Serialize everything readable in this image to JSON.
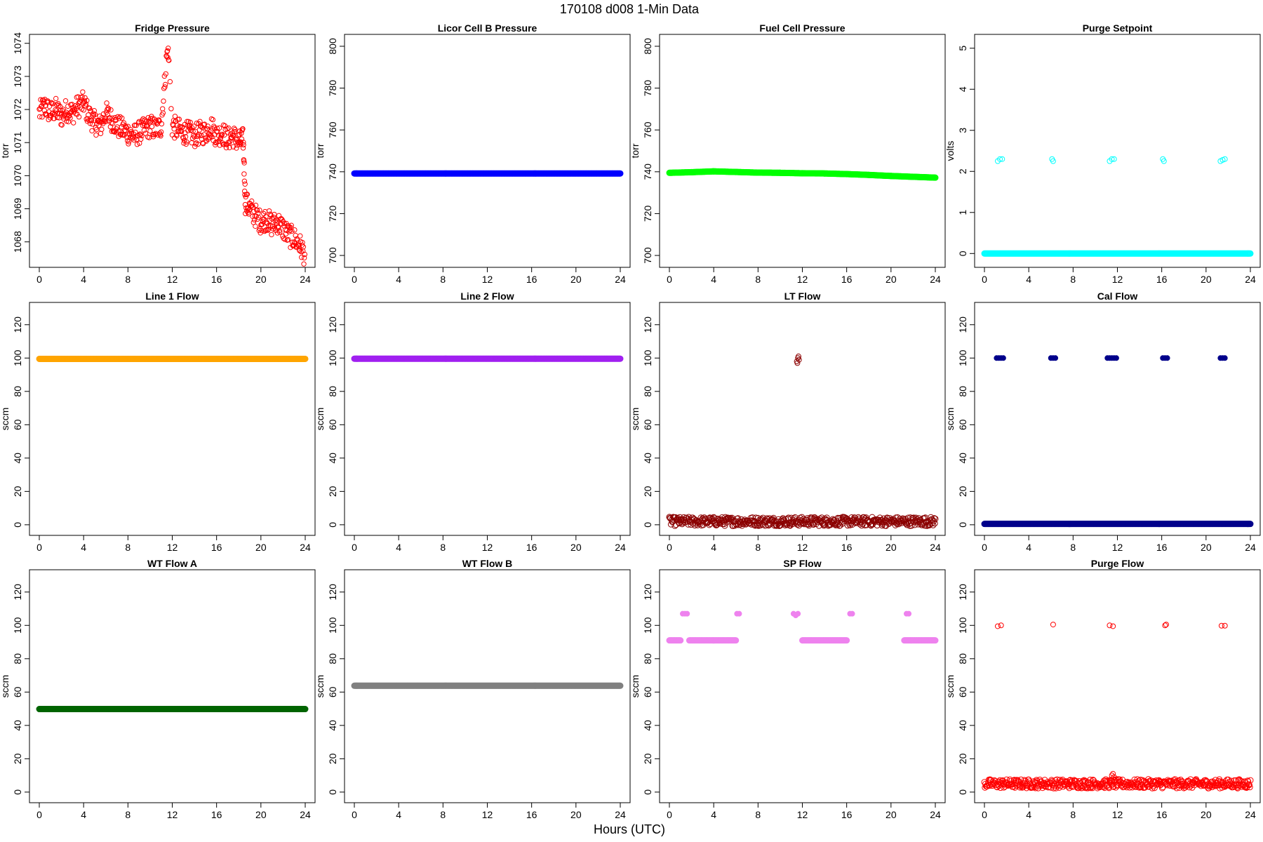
{
  "page": {
    "title": "170108   d008   1-Min Data",
    "x_caption": "Hours (UTC)"
  },
  "chart_data": [
    {
      "type": "scatter",
      "title": "Fridge Pressure",
      "ylabel": "torr",
      "xlabel": "",
      "xlim": [
        0,
        24
      ],
      "ylim": [
        1067.4,
        1074.1
      ],
      "xticks": [
        0,
        4,
        8,
        12,
        16,
        20,
        24
      ],
      "yticks": [
        1068,
        1069,
        1070,
        1071,
        1072,
        1073,
        1074
      ],
      "grid": false,
      "color": "#ff0000",
      "marker": "open-circle",
      "series": [
        {
          "x": [
            0,
            0.5,
            1,
            1.5,
            2,
            2.5,
            3,
            3.5,
            4,
            4.5,
            5,
            5.5,
            6,
            6.5,
            7,
            7.5,
            8,
            8.5,
            9,
            9.5,
            10,
            10.5,
            11,
            11.5,
            11.6,
            11.7,
            12,
            12.5,
            13,
            13.5,
            14,
            14.5,
            15,
            15.5,
            16,
            16.5,
            17,
            17.5,
            18,
            18.4,
            18.6,
            19,
            19.5,
            20,
            20.5,
            21,
            21.5,
            22,
            22.5,
            23,
            23.5,
            24
          ],
          "y": [
            1071.9,
            1072.1,
            1071.9,
            1072.0,
            1071.8,
            1072.0,
            1071.9,
            1072.1,
            1072.2,
            1071.8,
            1071.6,
            1071.5,
            1071.9,
            1071.7,
            1071.5,
            1071.4,
            1071.3,
            1071.2,
            1071.3,
            1071.4,
            1071.5,
            1071.4,
            1071.5,
            1073.6,
            1073.8,
            1073.4,
            1071.5,
            1071.4,
            1071.3,
            1071.3,
            1071.2,
            1071.3,
            1071.3,
            1071.5,
            1071.2,
            1071.3,
            1071.1,
            1071.2,
            1071.0,
            1071.1,
            1069.2,
            1069.0,
            1068.8,
            1068.6,
            1068.7,
            1068.5,
            1068.6,
            1068.4,
            1068.2,
            1068.1,
            1067.9,
            1067.6
          ]
        }
      ]
    },
    {
      "type": "scatter",
      "title": "Licor Cell B Pressure",
      "ylabel": "torr",
      "xlabel": "",
      "xlim": [
        0,
        24
      ],
      "ylim": [
        697,
        803
      ],
      "xticks": [
        0,
        4,
        8,
        12,
        16,
        20,
        24
      ],
      "yticks": [
        700,
        720,
        740,
        760,
        780,
        800
      ],
      "grid": false,
      "color": "#0000ff",
      "marker": "filled-band",
      "series": [
        {
          "x": [
            0,
            24
          ],
          "y": [
            739.2,
            739.2
          ]
        }
      ]
    },
    {
      "type": "scatter",
      "title": "Fuel Cell Pressure",
      "ylabel": "torr",
      "xlabel": "",
      "xlim": [
        0,
        24
      ],
      "ylim": [
        697,
        803
      ],
      "xticks": [
        0,
        4,
        8,
        12,
        16,
        20,
        24
      ],
      "yticks": [
        700,
        720,
        740,
        760,
        780,
        800
      ],
      "grid": false,
      "color": "#00ff00",
      "marker": "filled-band",
      "series": [
        {
          "x": [
            0,
            2,
            4,
            6,
            8,
            10,
            12,
            14,
            16,
            18,
            20,
            22,
            24
          ],
          "y": [
            739.5,
            739.8,
            740.2,
            739.9,
            739.6,
            739.5,
            739.3,
            739.2,
            738.9,
            738.5,
            738.0,
            737.6,
            737.2
          ]
        }
      ]
    },
    {
      "type": "scatter",
      "title": "Purge Setpoint",
      "ylabel": "volts",
      "xlabel": "",
      "xlim": [
        0,
        24
      ],
      "ylim": [
        -0.2,
        5.2
      ],
      "xticks": [
        0,
        4,
        8,
        12,
        16,
        20,
        24
      ],
      "yticks": [
        0,
        1,
        2,
        3,
        4,
        5
      ],
      "grid": false,
      "color": "#00ffff",
      "marker": "open-circle",
      "series": [
        {
          "name": "",
          "x": [
            0,
            24
          ],
          "y": [
            0,
            0
          ]
        },
        {
          "name": "",
          "x": [
            1.2,
            1.4,
            1.6,
            6.1,
            6.2,
            11.3,
            11.5,
            11.7,
            16.1,
            16.2,
            21.3,
            21.5,
            21.7
          ],
          "y": [
            2.25,
            2.3,
            2.3,
            2.3,
            2.25,
            2.25,
            2.3,
            2.3,
            2.3,
            2.25,
            2.25,
            2.28,
            2.3
          ]
        }
      ]
    },
    {
      "type": "scatter",
      "title": "Line 1 Flow",
      "ylabel": "sccm",
      "xlabel": "",
      "xlim": [
        0,
        24
      ],
      "ylim": [
        -3,
        130
      ],
      "xticks": [
        0,
        4,
        8,
        12,
        16,
        20,
        24
      ],
      "yticks": [
        0,
        20,
        40,
        60,
        80,
        100,
        120
      ],
      "grid": false,
      "color": "#ffa500",
      "marker": "filled-band",
      "series": [
        {
          "x": [
            0,
            24
          ],
          "y": [
            99.5,
            99.5
          ]
        }
      ]
    },
    {
      "type": "scatter",
      "title": "Line 2 Flow",
      "ylabel": "sccm",
      "xlabel": "",
      "xlim": [
        0,
        24
      ],
      "ylim": [
        -3,
        130
      ],
      "xticks": [
        0,
        4,
        8,
        12,
        16,
        20,
        24
      ],
      "yticks": [
        0,
        20,
        40,
        60,
        80,
        100,
        120
      ],
      "grid": false,
      "color": "#a020f0",
      "marker": "filled-band",
      "series": [
        {
          "x": [
            0,
            24
          ],
          "y": [
            99.6,
            99.6
          ]
        }
      ]
    },
    {
      "type": "scatter",
      "title": "LT Flow",
      "ylabel": "sccm",
      "xlabel": "",
      "xlim": [
        0,
        24
      ],
      "ylim": [
        -3,
        130
      ],
      "xticks": [
        0,
        4,
        8,
        12,
        16,
        20,
        24
      ],
      "yticks": [
        0,
        20,
        40,
        60,
        80,
        100,
        120
      ],
      "grid": false,
      "color": "#8b0000",
      "marker": "open-circle",
      "series": [
        {
          "name": "",
          "x": [
            0,
            24
          ],
          "y": [
            2,
            2
          ]
        },
        {
          "name": "",
          "x": [
            11.5,
            11.6,
            11.7,
            11.55,
            11.65
          ],
          "y": [
            98,
            100,
            99,
            97,
            101
          ]
        }
      ]
    },
    {
      "type": "scatter",
      "title": "Cal Flow",
      "ylabel": "sccm",
      "xlabel": "",
      "xlim": [
        0,
        24
      ],
      "ylim": [
        -3,
        130
      ],
      "xticks": [
        0,
        4,
        8,
        12,
        16,
        20,
        24
      ],
      "yticks": [
        0,
        20,
        40,
        60,
        80,
        100,
        120
      ],
      "grid": false,
      "color": "#00008b",
      "marker": "filled-band",
      "series": [
        {
          "name": "",
          "x": [
            0,
            24
          ],
          "y": [
            0.5,
            0.5
          ]
        },
        {
          "name": "",
          "x": [
            1.1,
            1.3,
            1.5,
            1.7,
            6.0,
            6.2,
            6.4,
            11.1,
            11.3,
            11.5,
            11.7,
            11.9,
            16.1,
            16.3,
            16.5,
            21.3,
            21.5,
            21.7
          ],
          "y": [
            100,
            100,
            100,
            100,
            100,
            100,
            100,
            100,
            100,
            100,
            100,
            100,
            100,
            100,
            100,
            100,
            100,
            100
          ]
        }
      ]
    },
    {
      "type": "scatter",
      "title": "WT Flow A",
      "ylabel": "sccm",
      "xlabel": "",
      "xlim": [
        0,
        24
      ],
      "ylim": [
        -3,
        130
      ],
      "xticks": [
        0,
        4,
        8,
        12,
        16,
        20,
        24
      ],
      "yticks": [
        0,
        20,
        40,
        60,
        80,
        100,
        120
      ],
      "grid": false,
      "color": "#006400",
      "marker": "filled-band",
      "series": [
        {
          "x": [
            0,
            24
          ],
          "y": [
            49.8,
            49.8
          ]
        }
      ]
    },
    {
      "type": "scatter",
      "title": "WT Flow B",
      "ylabel": "sccm",
      "xlabel": "",
      "xlim": [
        0,
        24
      ],
      "ylim": [
        -3,
        130
      ],
      "xticks": [
        0,
        4,
        8,
        12,
        16,
        20,
        24
      ],
      "yticks": [
        0,
        20,
        40,
        60,
        80,
        100,
        120
      ],
      "grid": false,
      "color": "#808080",
      "marker": "filled-band",
      "series": [
        {
          "x": [
            0,
            24
          ],
          "y": [
            63.8,
            63.8
          ]
        }
      ]
    },
    {
      "type": "scatter",
      "title": "SP Flow",
      "ylabel": "sccm",
      "xlabel": "",
      "xlim": [
        0,
        24
      ],
      "ylim": [
        -3,
        130
      ],
      "xticks": [
        0,
        4,
        8,
        12,
        16,
        20,
        24
      ],
      "yticks": [
        0,
        20,
        40,
        60,
        80,
        100,
        120
      ],
      "grid": false,
      "color": "#ee82ee",
      "marker": "filled-band",
      "series": [
        {
          "name": "",
          "x": [
            0,
            1,
            1.1,
            1.8,
            6,
            6.4,
            11,
            11.8,
            12,
            16,
            16.5,
            21.2,
            21.8,
            24
          ],
          "y": [
            91,
            91,
            null,
            91,
            91,
            null,
            91,
            null,
            91,
            91,
            null,
            91,
            91,
            91
          ]
        },
        {
          "name": "",
          "x": [
            1.2,
            1.4,
            1.6,
            6.1,
            6.3,
            11.2,
            11.4,
            11.6,
            16.3,
            16.5,
            21.4,
            21.6
          ],
          "y": [
            107,
            107,
            107,
            107,
            107,
            107,
            106,
            107,
            107,
            107,
            107,
            107
          ]
        }
      ]
    },
    {
      "type": "scatter",
      "title": "Purge Flow",
      "ylabel": "sccm",
      "xlabel": "",
      "xlim": [
        0,
        24
      ],
      "ylim": [
        -3,
        130
      ],
      "xticks": [
        0,
        4,
        8,
        12,
        16,
        20,
        24
      ],
      "yticks": [
        0,
        20,
        40,
        60,
        80,
        100,
        120
      ],
      "grid": false,
      "color": "#ff0000",
      "marker": "open-circle",
      "series": [
        {
          "name": "",
          "x": [
            0,
            24
          ],
          "y": [
            5,
            5
          ]
        },
        {
          "name": "",
          "x": [
            1.2,
            1.5,
            6.2,
            11.3,
            11.6,
            16.3,
            16.4,
            21.4,
            21.7
          ],
          "y": [
            99.5,
            100,
            100.5,
            100,
            99.5,
            100,
            100.5,
            99.8,
            99.8
          ]
        },
        {
          "name": "",
          "x": [
            11.5,
            11.6,
            11.7
          ],
          "y": [
            10,
            11,
            9
          ]
        }
      ]
    }
  ]
}
